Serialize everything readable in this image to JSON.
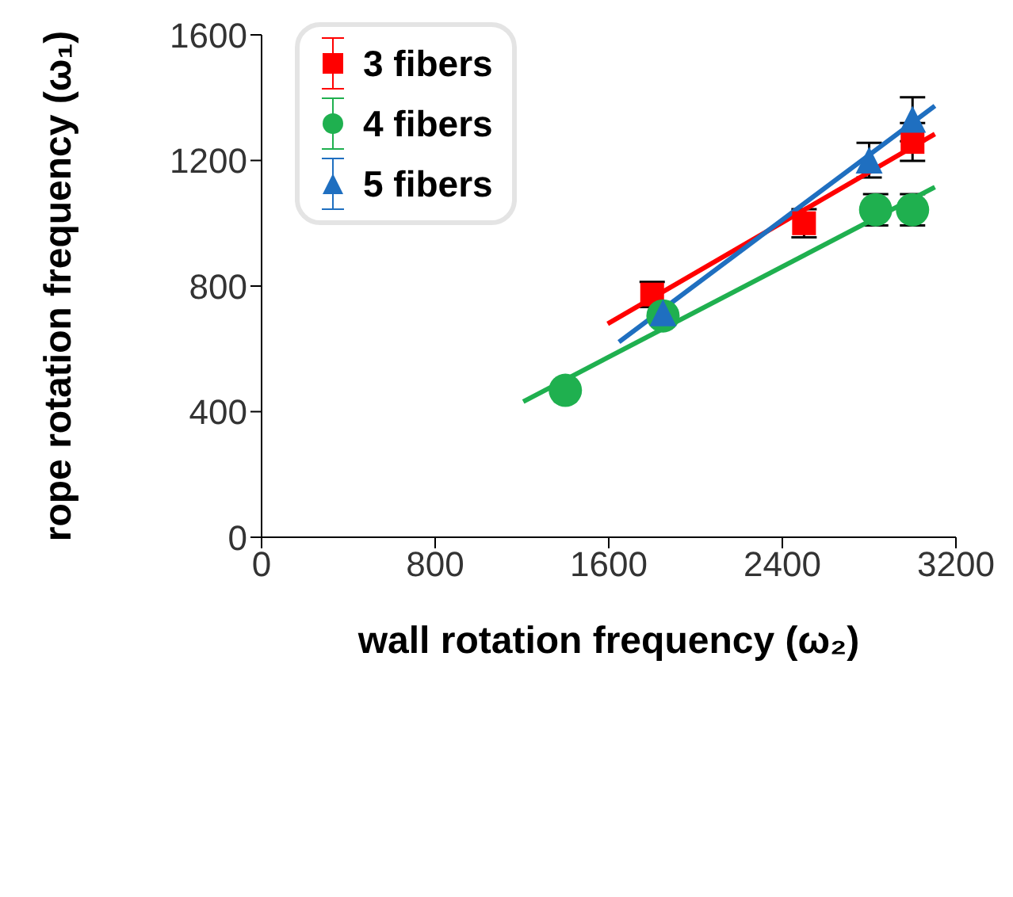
{
  "chart_data": {
    "type": "scatter",
    "xlabel": "wall rotation frequency (ω₂)",
    "ylabel": "rope rotation frequency (ω₁)",
    "xlim": [
      0,
      3200
    ],
    "xticks": [
      0,
      800,
      1600,
      2400,
      3200
    ],
    "ylim": [
      0,
      1600
    ],
    "yticks": [
      0,
      400,
      800,
      1200,
      1600
    ],
    "grid": false,
    "legend": "top left",
    "series": [
      {
        "name": "3 fibers",
        "marker": "square",
        "color": "#ff0000",
        "x": [
          1800,
          2500,
          3000
        ],
        "values": [
          773,
          1000,
          1259
        ],
        "errors": [
          40,
          45,
          60
        ]
      },
      {
        "name": "4 fibers",
        "marker": "circle",
        "color": "#1fb04f",
        "x": [
          1400,
          1850,
          2830,
          3000
        ],
        "values": [
          468,
          705,
          1043,
          1043
        ],
        "errors": [
          null,
          null,
          50,
          50
        ]
      },
      {
        "name": "5 fibers",
        "marker": "triangle",
        "color": "#1f6fc0",
        "x": [
          1850,
          2800,
          3000
        ],
        "values": [
          715,
          1201,
          1331
        ],
        "errors": [
          null,
          55,
          70
        ]
      },
      {
        "type": "line",
        "color": "#ff0000",
        "x": [
          1595,
          3103
        ],
        "values": [
          680,
          1284
        ]
      },
      {
        "type": "line",
        "color": "#1fb04f",
        "x": [
          1206,
          3103
        ],
        "values": [
          432,
          1115
        ]
      },
      {
        "type": "line",
        "color": "#1f6fc0",
        "x": [
          1647,
          3103
        ],
        "values": [
          622,
          1374
        ]
      }
    ]
  }
}
